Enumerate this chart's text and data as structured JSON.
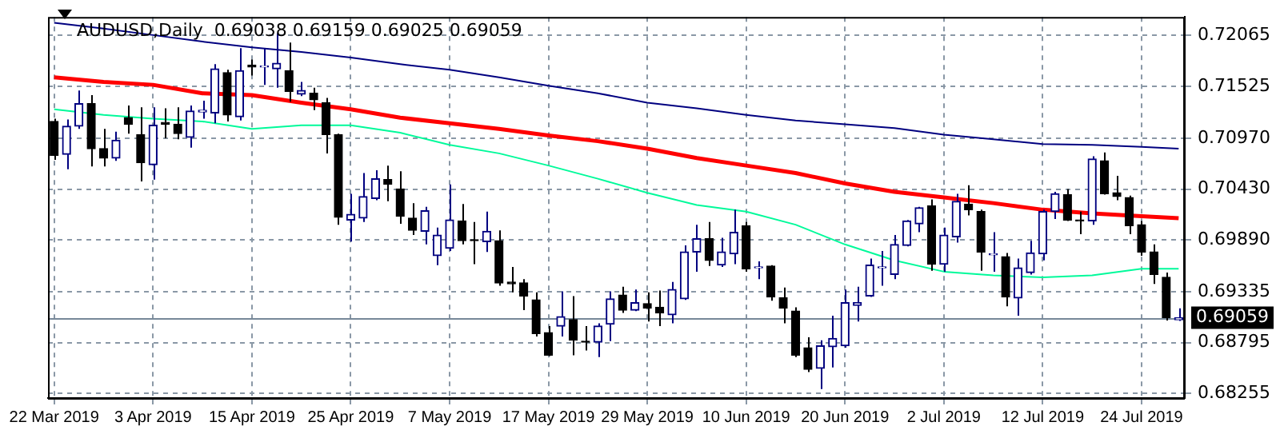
{
  "chart_data": {
    "type": "candlestick",
    "title": "AUDUSD,Daily  0.69038 0.69159 0.69025 0.69059",
    "categories": [
      "22 Mar 2019",
      null,
      null,
      null,
      null,
      null,
      null,
      null,
      "3 Apr 2019",
      null,
      null,
      null,
      null,
      null,
      null,
      null,
      "15 Apr 2019",
      null,
      null,
      null,
      null,
      null,
      null,
      null,
      "25 Apr 2019",
      null,
      null,
      null,
      null,
      null,
      null,
      null,
      "7 May 2019",
      null,
      null,
      null,
      null,
      null,
      null,
      null,
      "17 May 2019",
      null,
      null,
      null,
      null,
      null,
      null,
      null,
      "29 May 2019",
      null,
      null,
      null,
      null,
      null,
      null,
      null,
      "10 Jun 2019",
      null,
      null,
      null,
      null,
      null,
      null,
      null,
      "20 Jun 2019",
      null,
      null,
      null,
      null,
      null,
      null,
      null,
      "2 Jul 2019",
      null,
      null,
      null,
      null,
      null,
      null,
      null,
      "12 Jul 2019",
      null,
      null,
      null,
      null,
      null,
      null,
      null,
      "24 Jul 2019",
      null,
      null,
      null
    ],
    "ohlc": [
      [
        0.7115,
        0.7118,
        0.7074,
        0.7079
      ],
      [
        0.708,
        0.7117,
        0.7064,
        0.711
      ],
      [
        0.711,
        0.7148,
        0.7107,
        0.7134
      ],
      [
        0.7134,
        0.7143,
        0.7067,
        0.7086
      ],
      [
        0.7086,
        0.7107,
        0.7067,
        0.7076
      ],
      [
        0.7076,
        0.7104,
        0.7073,
        0.7095
      ],
      [
        0.7119,
        0.7132,
        0.7102,
        0.7112
      ],
      [
        0.7101,
        0.713,
        0.7051,
        0.7071
      ],
      [
        0.7069,
        0.713,
        0.7053,
        0.7111
      ],
      [
        0.7114,
        0.7129,
        0.7097,
        0.7112
      ],
      [
        0.7112,
        0.713,
        0.7096,
        0.7102
      ],
      [
        0.7098,
        0.7132,
        0.7087,
        0.7126
      ],
      [
        0.7125,
        0.7137,
        0.7118,
        0.7127
      ],
      [
        0.7124,
        0.7176,
        0.7113,
        0.7171
      ],
      [
        0.7167,
        0.717,
        0.7115,
        0.7122
      ],
      [
        0.712,
        0.7193,
        0.7116,
        0.7169
      ],
      [
        0.7175,
        0.7181,
        0.7164,
        0.7173
      ],
      [
        0.7173,
        0.7193,
        0.7154,
        0.7174
      ],
      [
        0.7171,
        0.7209,
        0.7151,
        0.7177
      ],
      [
        0.7169,
        0.7199,
        0.7136,
        0.7147
      ],
      [
        0.7144,
        0.7157,
        0.7142,
        0.7148
      ],
      [
        0.7145,
        0.7151,
        0.7127,
        0.7138
      ],
      [
        0.7135,
        0.714,
        0.7081,
        0.7101
      ],
      [
        0.7101,
        0.7102,
        0.7005,
        0.7013
      ],
      [
        0.701,
        0.7038,
        0.6987,
        0.7016
      ],
      [
        0.7012,
        0.706,
        0.7008,
        0.7035
      ],
      [
        0.7033,
        0.7063,
        0.7031,
        0.7054
      ],
      [
        0.7053,
        0.7068,
        0.703,
        0.7048
      ],
      [
        0.7043,
        0.7062,
        0.7006,
        0.7014
      ],
      [
        0.7012,
        0.7028,
        0.6994,
        0.6999
      ],
      [
        0.6998,
        0.7024,
        0.6984,
        0.702
      ],
      [
        0.6972,
        0.7002,
        0.6962,
        0.6994
      ],
      [
        0.698,
        0.7048,
        0.6977,
        0.701
      ],
      [
        0.7009,
        0.7027,
        0.6984,
        0.6988
      ],
      [
        0.6989,
        0.7008,
        0.6963,
        0.6988
      ],
      [
        0.6987,
        0.7019,
        0.6976,
        0.6998
      ],
      [
        0.6988,
        0.6999,
        0.694,
        0.6943
      ],
      [
        0.6944,
        0.696,
        0.6933,
        0.6942
      ],
      [
        0.6943,
        0.6947,
        0.6914,
        0.6929
      ],
      [
        0.6925,
        0.6933,
        0.6886,
        0.6889
      ],
      [
        0.689,
        0.6897,
        0.6865,
        0.6866
      ],
      [
        0.6897,
        0.6934,
        0.6886,
        0.6907
      ],
      [
        0.6904,
        0.6929,
        0.6866,
        0.6882
      ],
      [
        0.6881,
        0.6897,
        0.6871,
        0.688
      ],
      [
        0.688,
        0.69,
        0.6864,
        0.6897
      ],
      [
        0.6899,
        0.6934,
        0.6881,
        0.6926
      ],
      [
        0.693,
        0.6939,
        0.6911,
        0.6914
      ],
      [
        0.6914,
        0.6936,
        0.6913,
        0.6922
      ],
      [
        0.6921,
        0.6933,
        0.6902,
        0.6916
      ],
      [
        0.6917,
        0.6935,
        0.6897,
        0.6911
      ],
      [
        0.6909,
        0.6944,
        0.69,
        0.6936
      ],
      [
        0.6926,
        0.6983,
        0.6925,
        0.6976
      ],
      [
        0.6976,
        0.7005,
        0.6955,
        0.699
      ],
      [
        0.699,
        0.7008,
        0.6961,
        0.6967
      ],
      [
        0.6962,
        0.6991,
        0.696,
        0.6976
      ],
      [
        0.6974,
        0.7021,
        0.6963,
        0.6997
      ],
      [
        0.7004,
        0.7008,
        0.6955,
        0.6958
      ],
      [
        0.6959,
        0.6966,
        0.6947,
        0.696
      ],
      [
        0.6961,
        0.6962,
        0.6924,
        0.6928
      ],
      [
        0.6927,
        0.6938,
        0.69,
        0.6916
      ],
      [
        0.6913,
        0.6917,
        0.6864,
        0.6866
      ],
      [
        0.6874,
        0.6885,
        0.6848,
        0.6851
      ],
      [
        0.6852,
        0.6882,
        0.683,
        0.6876
      ],
      [
        0.6875,
        0.6908,
        0.6853,
        0.6884
      ],
      [
        0.6876,
        0.6936,
        0.6874,
        0.6922
      ],
      [
        0.6919,
        0.6939,
        0.6902,
        0.6922
      ],
      [
        0.6929,
        0.6969,
        0.6928,
        0.6962
      ],
      [
        0.6959,
        0.6977,
        0.694,
        0.696
      ],
      [
        0.6952,
        0.6994,
        0.6947,
        0.6984
      ],
      [
        0.6983,
        0.701,
        0.6982,
        0.7009
      ],
      [
        0.7006,
        0.7024,
        0.6997,
        0.7023
      ],
      [
        0.7025,
        0.7032,
        0.6956,
        0.6963
      ],
      [
        0.6963,
        0.7002,
        0.6955,
        0.6994
      ],
      [
        0.6992,
        0.7038,
        0.6986,
        0.703
      ],
      [
        0.7027,
        0.7047,
        0.7015,
        0.7021
      ],
      [
        0.7019,
        0.7021,
        0.6956,
        0.6976
      ],
      [
        0.6973,
        0.6997,
        0.6955,
        0.6974
      ],
      [
        0.6971,
        0.6975,
        0.6918,
        0.6928
      ],
      [
        0.6927,
        0.6969,
        0.6908,
        0.6959
      ],
      [
        0.6954,
        0.6988,
        0.6952,
        0.6975
      ],
      [
        0.6974,
        0.7021,
        0.6967,
        0.7019
      ],
      [
        0.7019,
        0.704,
        0.7011,
        0.7038
      ],
      [
        0.7037,
        0.7043,
        0.7009,
        0.701
      ],
      [
        0.701,
        0.7019,
        0.6995,
        0.7009
      ],
      [
        0.7009,
        0.7078,
        0.7005,
        0.7075
      ],
      [
        0.7073,
        0.7082,
        0.7037,
        0.7038
      ],
      [
        0.7039,
        0.7057,
        0.7031,
        0.7035
      ],
      [
        0.7034,
        0.7036,
        0.6995,
        0.7004
      ],
      [
        0.7005,
        0.7009,
        0.6972,
        0.6976
      ],
      [
        0.6976,
        0.6984,
        0.6942,
        0.6952
      ],
      [
        0.6949,
        0.6954,
        0.6903,
        0.6906
      ],
      [
        0.69038,
        0.69159,
        0.69025,
        0.69059
      ]
    ],
    "series": [
      {
        "type": "line",
        "color": "#000080",
        "values": [
          0.722,
          null,
          null,
          null,
          0.7214,
          null,
          null,
          null,
          0.7207,
          null,
          null,
          null,
          0.72,
          null,
          null,
          null,
          0.7194,
          null,
          null,
          null,
          0.7189,
          null,
          null,
          null,
          0.7183,
          null,
          null,
          null,
          0.7176,
          null,
          null,
          null,
          0.717,
          null,
          null,
          null,
          0.7162,
          null,
          null,
          null,
          0.7153,
          null,
          null,
          null,
          0.7145,
          null,
          null,
          null,
          0.7135,
          null,
          null,
          null,
          0.7129,
          null,
          null,
          null,
          0.7122,
          null,
          null,
          null,
          0.7116,
          null,
          null,
          null,
          0.7112,
          null,
          null,
          null,
          0.7108,
          null,
          null,
          null,
          0.7101,
          null,
          null,
          null,
          0.7096,
          null,
          null,
          null,
          0.7091,
          null,
          null,
          null,
          0.709,
          null,
          null,
          null,
          0.7088,
          null,
          null,
          0.7086
        ]
      },
      {
        "type": "line",
        "color": "#ff0000",
        "values": [
          0.7162,
          null,
          null,
          null,
          0.7157,
          null,
          null,
          null,
          0.7154,
          null,
          null,
          null,
          0.7145,
          null,
          null,
          null,
          0.7143,
          null,
          null,
          null,
          0.7135,
          null,
          null,
          null,
          0.7128,
          null,
          null,
          null,
          0.7119,
          null,
          null,
          null,
          0.7113,
          null,
          null,
          null,
          0.7107,
          null,
          null,
          null,
          0.71,
          null,
          null,
          null,
          0.7094,
          null,
          null,
          null,
          0.7086,
          null,
          null,
          null,
          0.7076,
          null,
          null,
          null,
          0.7068,
          null,
          null,
          null,
          0.706,
          null,
          null,
          null,
          0.7049,
          null,
          null,
          null,
          0.704,
          null,
          null,
          null,
          0.7034,
          null,
          null,
          null,
          0.7028,
          null,
          null,
          null,
          0.7021,
          null,
          null,
          null,
          0.7017,
          null,
          null,
          null,
          0.7014,
          null,
          null,
          0.7012
        ]
      },
      {
        "type": "line",
        "color": "#00fa9a",
        "values": [
          0.7128,
          null,
          null,
          null,
          0.7122,
          null,
          null,
          null,
          0.7118,
          null,
          null,
          null,
          0.7115,
          null,
          null,
          null,
          0.7107,
          null,
          null,
          null,
          0.7111,
          null,
          null,
          null,
          0.7111,
          null,
          null,
          null,
          0.7103,
          null,
          null,
          null,
          0.709,
          null,
          null,
          null,
          0.7081,
          null,
          null,
          null,
          0.7068,
          null,
          null,
          null,
          0.7054,
          null,
          null,
          null,
          0.7039,
          null,
          null,
          null,
          0.7026,
          null,
          null,
          null,
          0.7019,
          null,
          null,
          null,
          0.7005,
          null,
          null,
          null,
          0.6984,
          null,
          null,
          null,
          0.6967,
          null,
          null,
          null,
          0.6955,
          null,
          null,
          null,
          0.6951,
          null,
          null,
          null,
          0.6949,
          null,
          null,
          null,
          0.6951,
          null,
          null,
          null,
          0.6958,
          null,
          null,
          0.6958
        ]
      }
    ],
    "ylim": [
      0.68204,
      0.72263
    ],
    "yticks": [
      0.72065,
      0.71525,
      {
        "value": 0.7097,
        "label": "0.70970"
      },
      {
        "value": 0.7043,
        "label": "0.70430"
      },
      {
        "value": 0.6989,
        "label": "0.69890"
      },
      0.69335,
      0.68795,
      0.68255
    ],
    "ref_lines": [
      {
        "axis": "y",
        "value": 0.69059,
        "label": "0.69059",
        "color": "#778899"
      }
    ],
    "grid": true
  }
}
